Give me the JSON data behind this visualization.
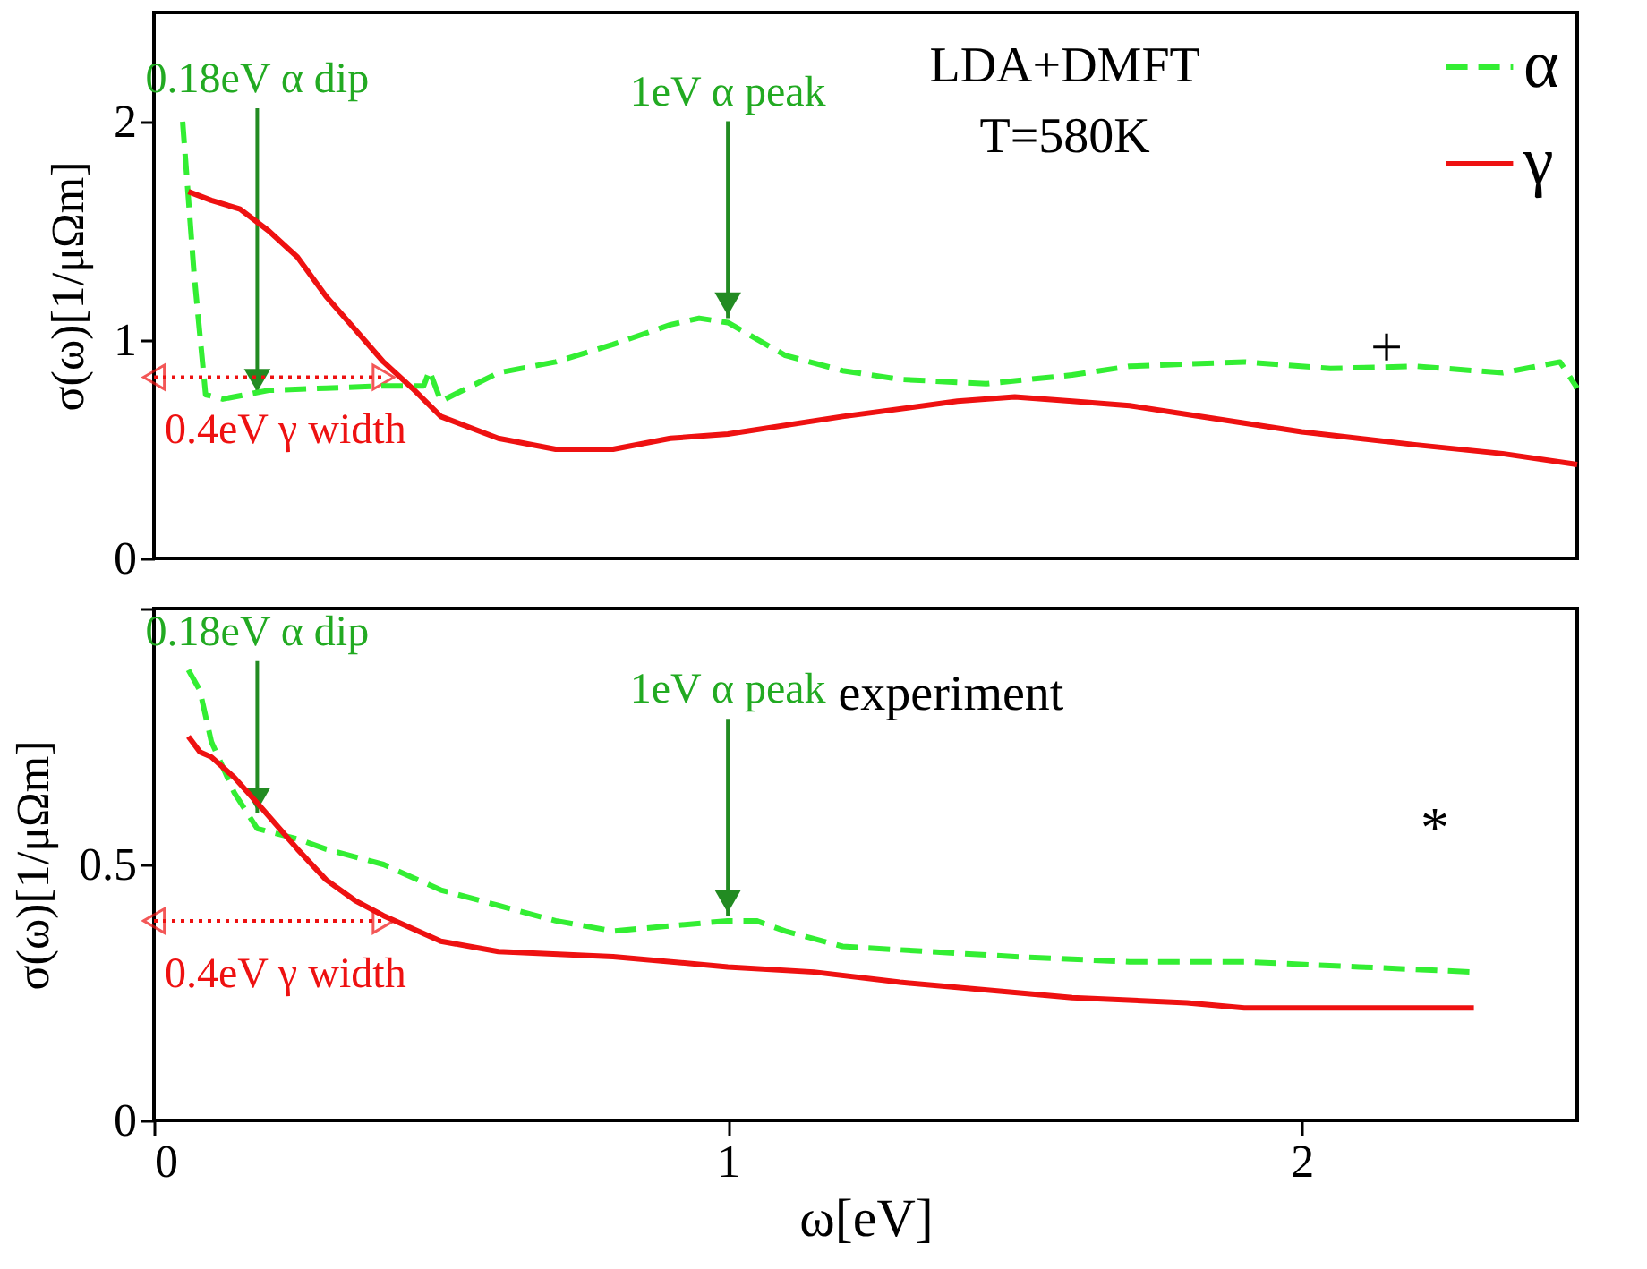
{
  "chart_data": [
    {
      "type": "line",
      "xlim": [
        0,
        2.48
      ],
      "ylim": [
        0,
        2.5
      ],
      "yticks": [
        0,
        1,
        2
      ],
      "ylabel": "σ(ω)[1/μΩm]",
      "tick_labels": "y",
      "grid": false,
      "legend": "top right",
      "marker": "none",
      "series": [
        {
          "name": "α",
          "color": "#33ee33",
          "line_style": "dashed",
          "x": [
            0.05,
            0.07,
            0.09,
            0.12,
            0.2,
            0.3,
            0.4,
            0.47,
            0.48,
            0.5,
            0.6,
            0.7,
            0.8,
            0.9,
            0.95,
            1.0,
            1.1,
            1.2,
            1.3,
            1.45,
            1.6,
            1.7,
            1.9,
            2.05,
            2.2,
            2.35,
            2.45,
            2.48
          ],
          "values": [
            2.0,
            1.3,
            0.75,
            0.73,
            0.77,
            0.78,
            0.79,
            0.79,
            0.86,
            0.72,
            0.85,
            0.9,
            0.98,
            1.07,
            1.1,
            1.08,
            0.93,
            0.86,
            0.82,
            0.8,
            0.84,
            0.88,
            0.9,
            0.87,
            0.88,
            0.85,
            0.9,
            0.78
          ]
        },
        {
          "name": "γ",
          "color": "#ee1111",
          "line_style": "solid",
          "x": [
            0.06,
            0.1,
            0.15,
            0.2,
            0.25,
            0.3,
            0.35,
            0.4,
            0.45,
            0.5,
            0.6,
            0.7,
            0.8,
            0.9,
            1.0,
            1.2,
            1.4,
            1.5,
            1.6,
            1.7,
            1.8,
            1.9,
            2.0,
            2.2,
            2.35,
            2.48
          ],
          "values": [
            1.68,
            1.64,
            1.6,
            1.5,
            1.38,
            1.2,
            1.05,
            0.9,
            0.78,
            0.65,
            0.55,
            0.5,
            0.5,
            0.55,
            0.57,
            0.65,
            0.72,
            0.74,
            0.72,
            0.7,
            0.66,
            0.62,
            0.58,
            0.52,
            0.48,
            0.43
          ]
        }
      ],
      "annotations": [
        {
          "text": "0.18eV α dip",
          "x": 0.18,
          "y": 0.75
        },
        {
          "text": "1eV α peak",
          "x": 1.0,
          "y": 1.1
        },
        {
          "text": "0.4eV γ width",
          "x": 0.4,
          "y": 0.83
        },
        "LDA+DMFT",
        "T=580K",
        "+"
      ]
    },
    {
      "type": "line",
      "xlim": [
        0,
        2.48
      ],
      "ylim": [
        0,
        1
      ],
      "yticks": [
        0,
        0.5,
        {
          "value": 1,
          "label": null
        }
      ],
      "xticks": [
        0,
        1,
        2
      ],
      "xlabel": "ω[eV]",
      "ylabel": "σ(ω)[1/μΩm]",
      "grid": false,
      "legend": false,
      "marker": "none",
      "series": [
        {
          "color": "#33ee33",
          "line_style": "dashed",
          "x": [
            0.06,
            0.08,
            0.1,
            0.14,
            0.18,
            0.25,
            0.3,
            0.4,
            0.5,
            0.6,
            0.7,
            0.8,
            0.9,
            1.0,
            1.05,
            1.1,
            1.2,
            1.35,
            1.5,
            1.7,
            1.9,
            2.1,
            2.3
          ],
          "values": [
            0.88,
            0.84,
            0.74,
            0.64,
            0.57,
            0.55,
            0.53,
            0.5,
            0.45,
            0.42,
            0.39,
            0.37,
            0.38,
            0.39,
            0.39,
            0.37,
            0.34,
            0.33,
            0.32,
            0.31,
            0.31,
            0.3,
            0.29
          ]
        },
        {
          "color": "#ee1111",
          "line_style": "solid",
          "x": [
            0.06,
            0.08,
            0.1,
            0.14,
            0.18,
            0.25,
            0.3,
            0.35,
            0.4,
            0.5,
            0.6,
            0.8,
            1.0,
            1.15,
            1.3,
            1.5,
            1.6,
            1.8,
            1.9,
            2.1,
            2.3
          ],
          "values": [
            0.75,
            0.72,
            0.71,
            0.67,
            0.62,
            0.53,
            0.47,
            0.43,
            0.4,
            0.35,
            0.33,
            0.32,
            0.3,
            0.29,
            0.27,
            0.25,
            0.24,
            0.23,
            0.22,
            0.22,
            0.22
          ]
        }
      ],
      "annotations": [
        {
          "text": "0.18eV α dip",
          "x": 0.18,
          "y": 0.6
        },
        {
          "text": "1eV α peak",
          "x": 1.0,
          "y": 0.4
        },
        {
          "text": "0.4eV γ width",
          "x": 0.4,
          "y": 0.39
        },
        "experiment",
        "*"
      ]
    }
  ]
}
